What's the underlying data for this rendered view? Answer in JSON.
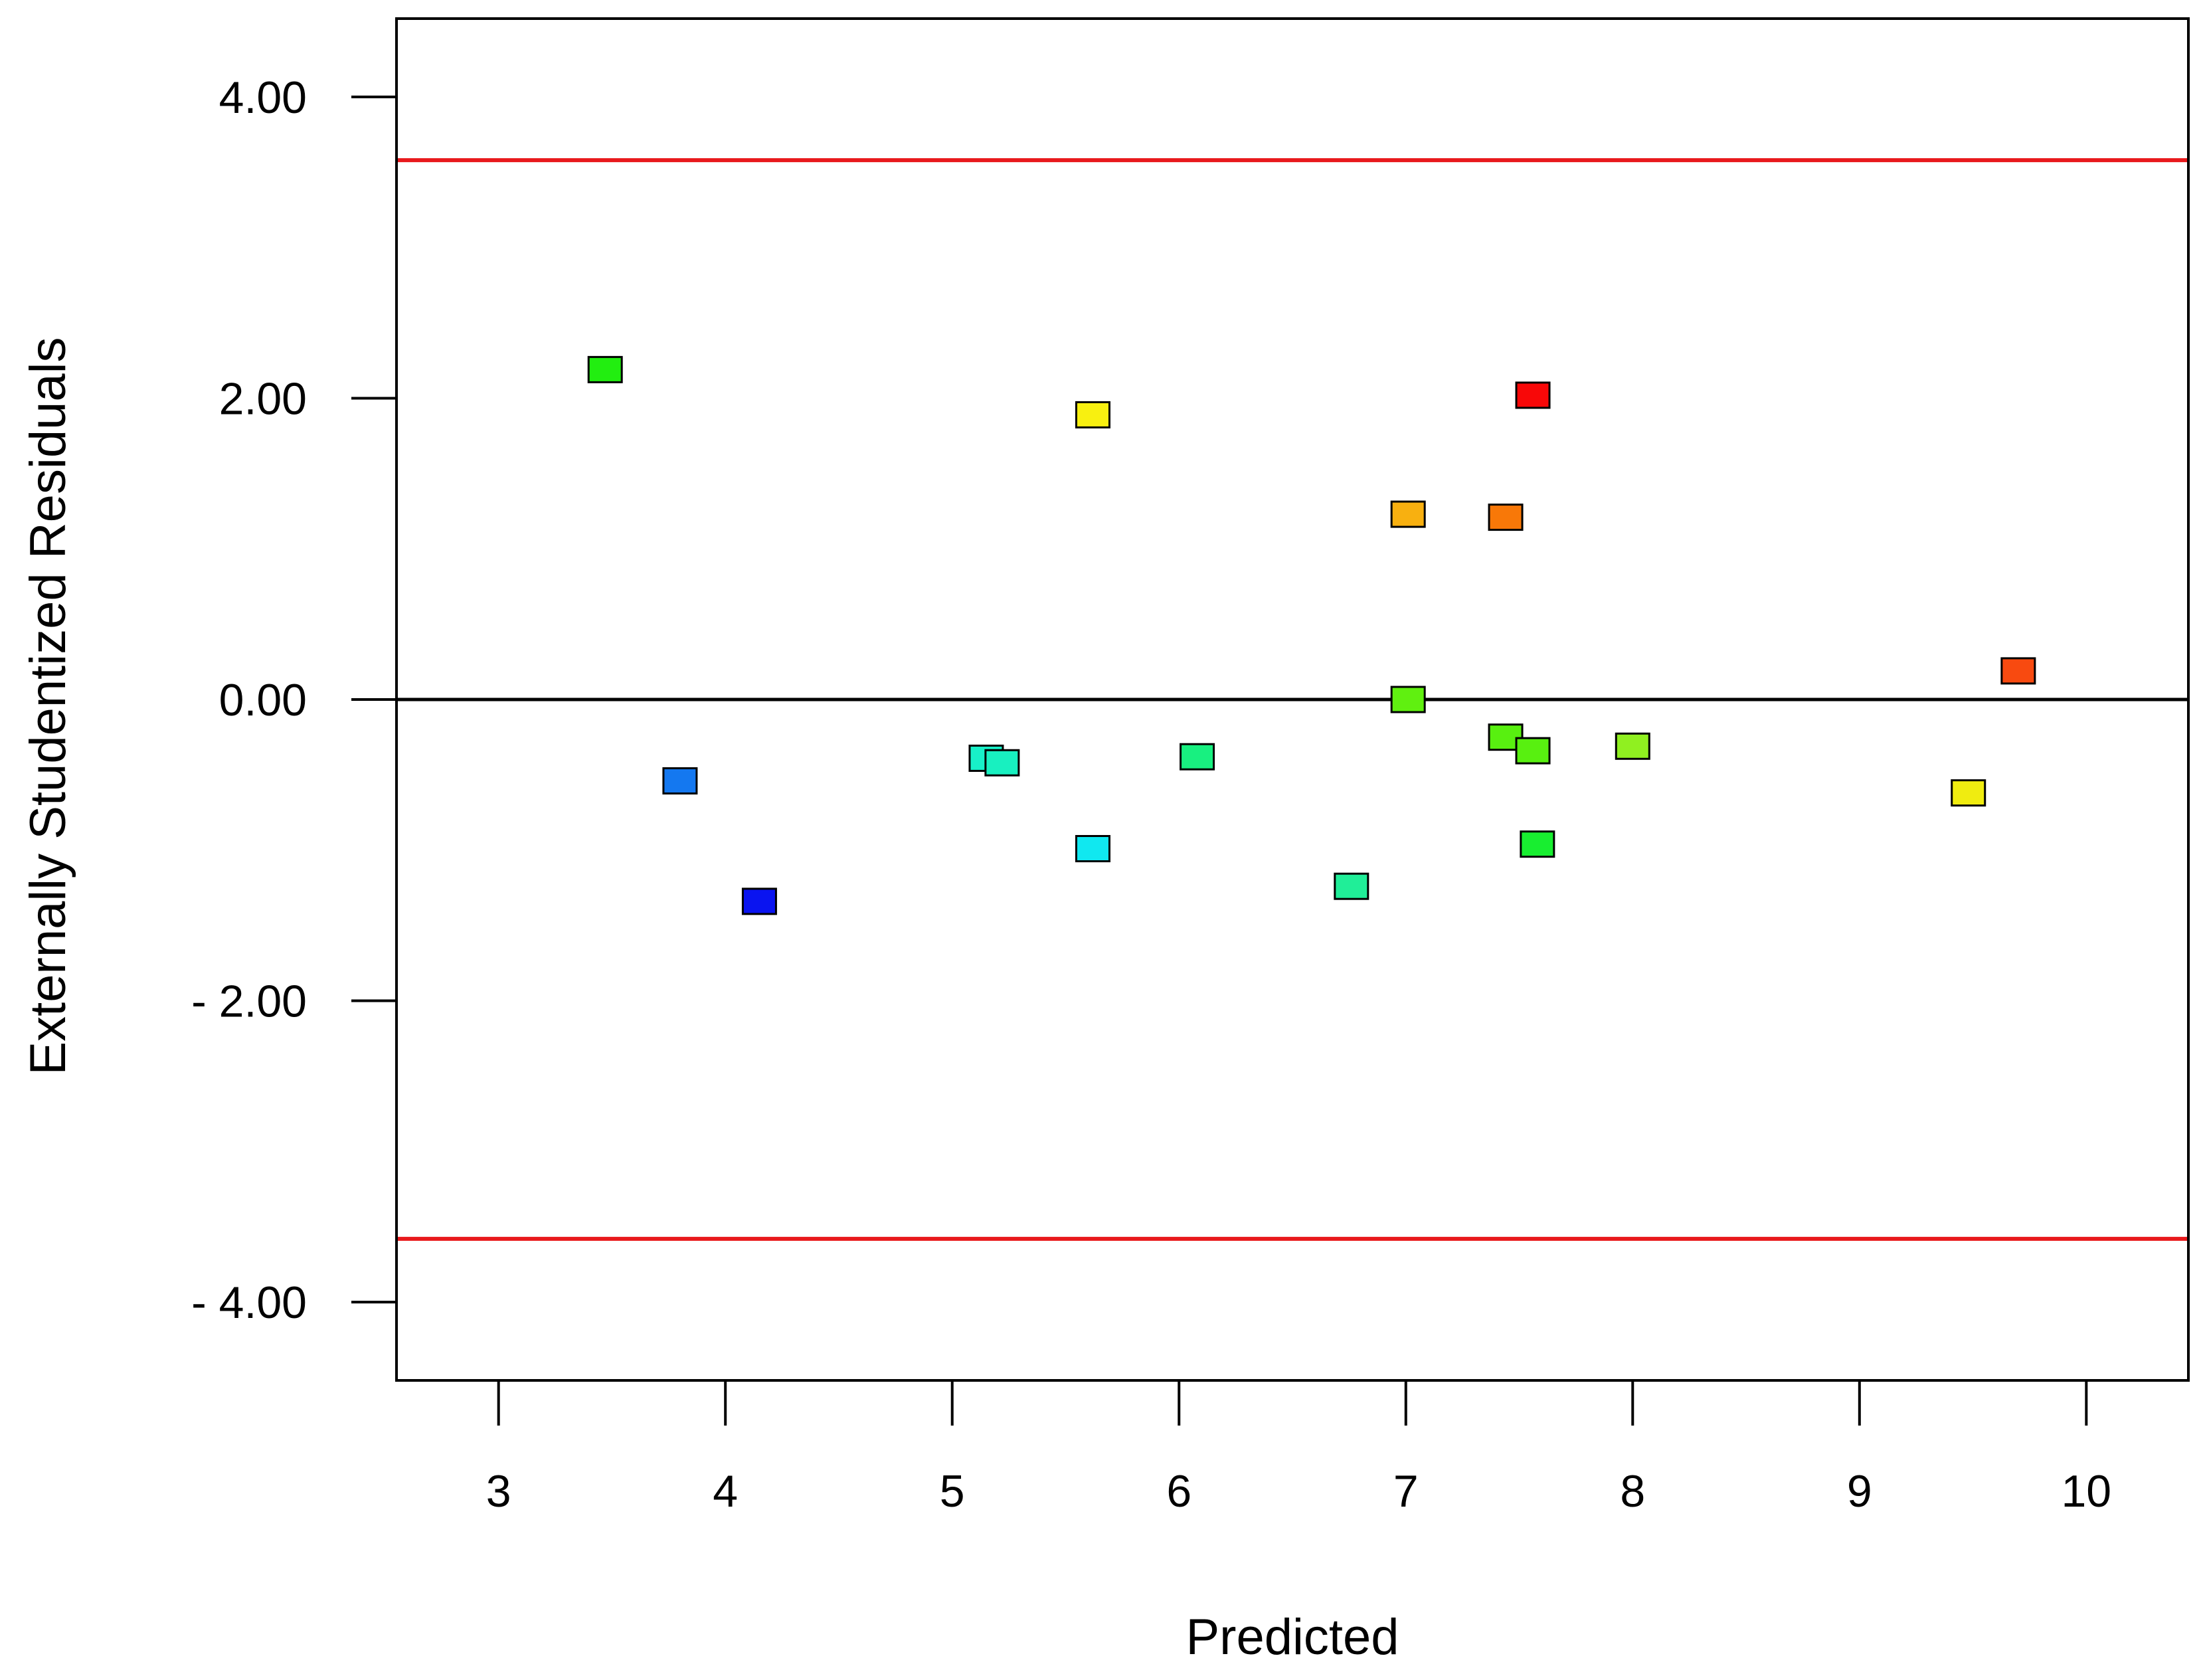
{
  "chart_data": {
    "type": "scatter",
    "title": "",
    "xlabel": "Predicted",
    "ylabel": "Externally Studentized Residuals",
    "xlim": [
      2.55,
      10.45
    ],
    "ylim": [
      -4.52,
      4.52
    ],
    "x_ticks": [
      3,
      4,
      5,
      6,
      7,
      8,
      9,
      10
    ],
    "x_tick_labels": [
      "3",
      "4",
      "5",
      "6",
      "7",
      "8",
      "9",
      "10"
    ],
    "y_ticks": [
      4,
      2,
      0,
      -2,
      -4
    ],
    "y_tick_labels": [
      "4.00",
      "2.00",
      "0.00",
      "- 2.00",
      "- 4.00"
    ],
    "reference_lines": [
      {
        "y": 3.58,
        "color": "#e8191c"
      },
      {
        "y": 0.0,
        "color": "#000000"
      },
      {
        "y": -3.58,
        "color": "#e8191c"
      }
    ],
    "grid": false,
    "points": [
      {
        "x": 3.47,
        "y": 2.19,
        "color": "#22ee10"
      },
      {
        "x": 3.8,
        "y": -0.54,
        "color": "#1478f0"
      },
      {
        "x": 4.15,
        "y": -1.34,
        "color": "#0a14f0"
      },
      {
        "x": 5.15,
        "y": -0.39,
        "color": "#18f0c8"
      },
      {
        "x": 5.22,
        "y": -0.42,
        "color": "#18f0c0"
      },
      {
        "x": 5.62,
        "y": 1.89,
        "color": "#f8f010"
      },
      {
        "x": 5.62,
        "y": -0.99,
        "color": "#10e8f0"
      },
      {
        "x": 6.08,
        "y": -0.38,
        "color": "#18f080"
      },
      {
        "x": 6.76,
        "y": -1.24,
        "color": "#20ee98"
      },
      {
        "x": 7.01,
        "y": 1.23,
        "color": "#f8b010"
      },
      {
        "x": 7.01,
        "y": 0.0,
        "color": "#60f010"
      },
      {
        "x": 7.44,
        "y": 1.21,
        "color": "#f87808"
      },
      {
        "x": 7.44,
        "y": -0.25,
        "color": "#58f010"
      },
      {
        "x": 7.56,
        "y": 2.02,
        "color": "#f80808"
      },
      {
        "x": 7.56,
        "y": -0.34,
        "color": "#58f010"
      },
      {
        "x": 7.58,
        "y": -0.96,
        "color": "#18ee30"
      },
      {
        "x": 8.0,
        "y": -0.31,
        "color": "#90f020"
      },
      {
        "x": 9.48,
        "y": -0.62,
        "color": "#f0ec10"
      },
      {
        "x": 9.7,
        "y": 0.19,
        "color": "#f84a10"
      }
    ]
  }
}
